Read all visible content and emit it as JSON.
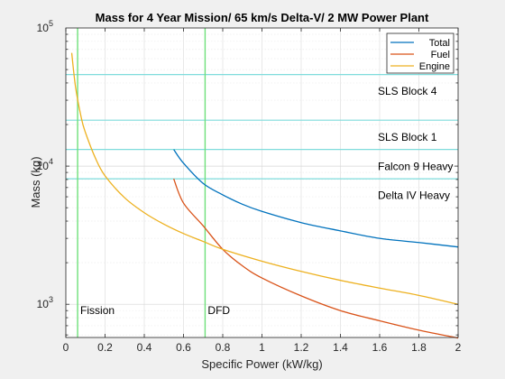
{
  "chart_data": {
    "type": "line",
    "title": "Mass for 4 Year Mission/ 65 km/s Delta-V/ 2 MW Power Plant",
    "xlabel": "Specific Power (kW/kg)",
    "ylabel": "Mass (kg)",
    "xlim": [
      0,
      2
    ],
    "ylim": [
      575,
      100000
    ],
    "yscale": "log",
    "grid": true,
    "legend_position": "top-right",
    "xticks": [
      0,
      0.2,
      0.4,
      0.6,
      0.8,
      1,
      1.2,
      1.4,
      1.6,
      1.8,
      2
    ],
    "xtick_labels": [
      "0",
      "0.2",
      "0.4",
      "0.6",
      "0.8",
      "1",
      "1.2",
      "1.4",
      "1.6",
      "1.8",
      "2"
    ],
    "yticks": [
      {
        "value": 1000,
        "base": "10",
        "exp": "3"
      },
      {
        "value": 10000,
        "base": "10",
        "exp": "4"
      },
      {
        "value": 100000,
        "base": "10",
        "exp": "5"
      }
    ],
    "series": [
      {
        "name": "Total",
        "color": "#0072bd",
        "points": [
          [
            0.55,
            13200
          ],
          [
            0.6,
            10500
          ],
          [
            0.7,
            7500
          ],
          [
            0.8,
            6200
          ],
          [
            0.9,
            5300
          ],
          [
            1.0,
            4700
          ],
          [
            1.2,
            3900
          ],
          [
            1.4,
            3400
          ],
          [
            1.6,
            3000
          ],
          [
            1.8,
            2800
          ],
          [
            2.0,
            2600
          ]
        ]
      },
      {
        "name": "Fuel",
        "color": "#d95319",
        "points": [
          [
            0.55,
            8100
          ],
          [
            0.6,
            5400
          ],
          [
            0.7,
            3700
          ],
          [
            0.8,
            2500
          ],
          [
            0.9,
            1900
          ],
          [
            1.0,
            1550
          ],
          [
            1.2,
            1150
          ],
          [
            1.4,
            900
          ],
          [
            1.6,
            760
          ],
          [
            1.8,
            650
          ],
          [
            2.0,
            570
          ]
        ]
      },
      {
        "name": "Engine",
        "color": "#edb120",
        "points": [
          [
            0.03,
            66000
          ],
          [
            0.05,
            37000
          ],
          [
            0.08,
            22000
          ],
          [
            0.1,
            17500
          ],
          [
            0.15,
            11500
          ],
          [
            0.2,
            8500
          ],
          [
            0.3,
            5900
          ],
          [
            0.4,
            4600
          ],
          [
            0.5,
            3800
          ],
          [
            0.6,
            3250
          ],
          [
            0.7,
            2850
          ],
          [
            0.8,
            2500
          ],
          [
            1.0,
            2050
          ],
          [
            1.2,
            1730
          ],
          [
            1.4,
            1490
          ],
          [
            1.6,
            1310
          ],
          [
            1.8,
            1160
          ],
          [
            2.0,
            1000
          ]
        ]
      }
    ],
    "hlines": [
      {
        "label": "SLS Block 4",
        "value": 46000,
        "label_value": 35000
      },
      {
        "label": "SLS Block 1",
        "value": 21500,
        "label_value": 16200
      },
      {
        "label": "Falcon 9 Heavy",
        "value": 13200,
        "label_value": 9950
      },
      {
        "label": "Delta IV Heavy",
        "value": 8100,
        "label_value": 6150
      }
    ],
    "hline_color": "#7fdcdc",
    "vlines": [
      {
        "label": "Fission",
        "value": 0.06
      },
      {
        "label": "DFD",
        "value": 0.71
      }
    ],
    "vline_color": "#6ee07a",
    "vline_label_value": 900
  }
}
